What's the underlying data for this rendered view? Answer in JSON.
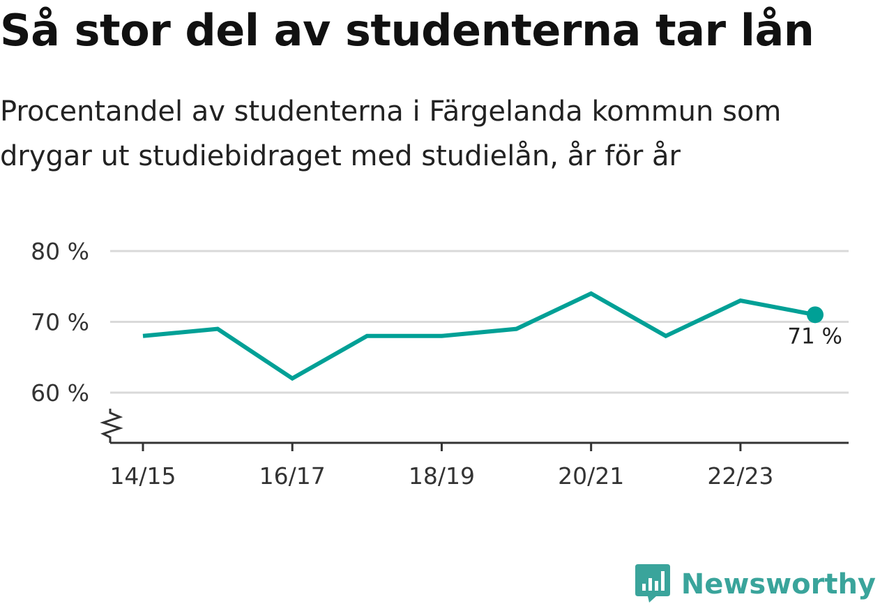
{
  "title": "Så stor del av studenterna tar lån",
  "subtitle": "Procentandel av studenterna i Färgelanda kommun som drygar ut studiebidraget med studielån, år för år",
  "brand": {
    "name": "Newsworthy",
    "logo_icon": "newsworthy-logo-icon",
    "color": "#3aa49b"
  },
  "chart_data": {
    "type": "line",
    "x": [
      "14/15",
      "15/16",
      "16/17",
      "17/18",
      "18/19",
      "19/20",
      "20/21",
      "21/22",
      "22/23",
      "23/24"
    ],
    "x_tick_labels": [
      "14/15",
      "16/17",
      "18/19",
      "20/21",
      "22/23"
    ],
    "series": [
      {
        "values": [
          68,
          69,
          62,
          68,
          68,
          69,
          74,
          68,
          73,
          71
        ],
        "color": "#00a096"
      }
    ],
    "ylim": [
      53,
      80
    ],
    "y_ticks": [
      60,
      70,
      80
    ],
    "y_tick_labels": [
      "60 %",
      "70 %",
      "80 %"
    ],
    "axis_break": true,
    "grid": true,
    "last_value_label": "71 %",
    "title": "Så stor del av studenterna tar lån",
    "xlabel": "",
    "ylabel": ""
  }
}
